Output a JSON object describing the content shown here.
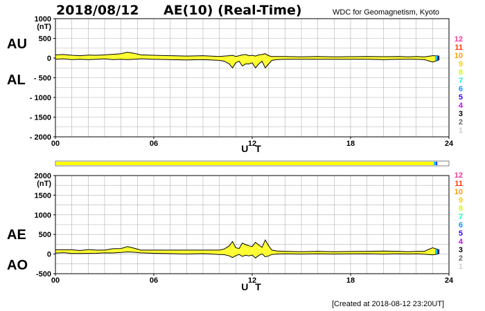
{
  "header": {
    "date": "2018/08/12",
    "title": "AE(10) (Real-Time)",
    "source": "WDC for Geomagnetism, Kyoto"
  },
  "footer": {
    "created": "[Created at 2018-08-12 23:20UT]"
  },
  "colors": {
    "fill": "#ffff33",
    "grid": "#b0b0b0",
    "axis": "#000000",
    "tail_cyan": "#00ccff",
    "tail_dark": "#222266"
  },
  "legend": {
    "items": [
      {
        "label": "12",
        "color": "#ff3399"
      },
      {
        "label": "11",
        "color": "#ff3300"
      },
      {
        "label": "10",
        "color": "#ff9900"
      },
      {
        "label": "9",
        "color": "#ffcc00"
      },
      {
        "label": "8",
        "color": "#ccff00"
      },
      {
        "label": "7",
        "color": "#00ffcc"
      },
      {
        "label": "6",
        "color": "#0099ff"
      },
      {
        "label": "5",
        "color": "#3300ff"
      },
      {
        "label": "4",
        "color": "#cc00ff"
      },
      {
        "label": "3",
        "color": "#000000"
      },
      {
        "label": "2",
        "color": "#666666"
      },
      {
        "label": "1",
        "color": "#cccccc"
      }
    ]
  },
  "station_bar": {
    "color": "#ffff00",
    "tail_colors": [
      "#00ccff",
      "#0033ff"
    ],
    "coverage_end_hour": 23.33
  },
  "chart_data": [
    {
      "type": "area",
      "name": "upper",
      "unit": "(nT)",
      "side_labels": [
        "AU",
        "AL"
      ],
      "xlabel": "U T",
      "xlim": [
        0,
        24
      ],
      "x_ticks": [
        "00",
        "06",
        "12",
        "18",
        "24"
      ],
      "ylim": [
        -2000,
        1000
      ],
      "y_ticks": [
        "1000",
        "500",
        "0",
        "- 500",
        "- 1000",
        "- 1500",
        "- 2000"
      ],
      "y_tick_values": [
        1000,
        500,
        0,
        -500,
        -1000,
        -1500,
        -2000
      ],
      "x": [
        0,
        0.5,
        1,
        1.5,
        2,
        2.5,
        3,
        3.5,
        4,
        4.4,
        4.8,
        5.2,
        6,
        7,
        8,
        9,
        10,
        10.3,
        10.6,
        10.8,
        11,
        11.2,
        11.4,
        11.6,
        11.8,
        12,
        12.2,
        12.4,
        12.6,
        12.8,
        13,
        13.2,
        13.5,
        14,
        15,
        16,
        17,
        18,
        19,
        20,
        21,
        21.5,
        22,
        22.5,
        23,
        23.33
      ],
      "series": [
        {
          "name": "AU",
          "values": [
            80,
            90,
            70,
            60,
            75,
            70,
            80,
            95,
            110,
            150,
            120,
            80,
            70,
            60,
            50,
            60,
            40,
            50,
            60,
            70,
            40,
            60,
            80,
            90,
            60,
            70,
            50,
            80,
            90,
            110,
            60,
            40,
            40,
            40,
            30,
            40,
            30,
            35,
            40,
            35,
            40,
            30,
            40,
            30,
            60,
            60
          ]
        },
        {
          "name": "AL",
          "values": [
            -30,
            -20,
            -40,
            -30,
            -40,
            -30,
            -20,
            -40,
            -30,
            -40,
            -30,
            -20,
            -30,
            -40,
            -50,
            -40,
            -60,
            -80,
            -150,
            -250,
            -120,
            -80,
            -200,
            -150,
            -150,
            -120,
            -250,
            -150,
            -80,
            -250,
            -150,
            -60,
            -40,
            -30,
            -30,
            -30,
            -30,
            -30,
            -30,
            -40,
            -30,
            -30,
            -30,
            -40,
            -100,
            -60
          ]
        }
      ]
    },
    {
      "type": "area",
      "name": "lower",
      "unit": "(nT)",
      "side_labels": [
        "AE",
        "AO"
      ],
      "xlabel": "U T",
      "xlim": [
        0,
        24
      ],
      "x_ticks": [
        "00",
        "06",
        "12",
        "18",
        "24"
      ],
      "ylim": [
        -500,
        2000
      ],
      "y_ticks": [
        "2000",
        "1500",
        "1000",
        "500",
        "0",
        "-500"
      ],
      "y_tick_values": [
        2000,
        1500,
        1000,
        500,
        0,
        -500
      ],
      "x": [
        0,
        0.5,
        1,
        1.5,
        2,
        2.5,
        3,
        3.5,
        4,
        4.4,
        4.8,
        5.2,
        6,
        7,
        8,
        9,
        10,
        10.3,
        10.6,
        10.8,
        11,
        11.2,
        11.4,
        11.6,
        11.8,
        12,
        12.2,
        12.4,
        12.6,
        12.8,
        13,
        13.2,
        13.5,
        14,
        15,
        16,
        17,
        18,
        19,
        20,
        21,
        21.5,
        22,
        22.5,
        23,
        23.33
      ],
      "series": [
        {
          "name": "AE",
          "values": [
            110,
            110,
            110,
            90,
            115,
            100,
            100,
            135,
            140,
            190,
            150,
            100,
            100,
            100,
            100,
            100,
            100,
            130,
            210,
            320,
            160,
            140,
            280,
            240,
            210,
            190,
            300,
            230,
            170,
            360,
            210,
            100,
            80,
            70,
            60,
            70,
            60,
            65,
            70,
            75,
            70,
            60,
            70,
            70,
            160,
            120
          ]
        },
        {
          "name": "AO",
          "values": [
            25,
            35,
            15,
            15,
            18,
            20,
            30,
            28,
            40,
            55,
            45,
            30,
            20,
            10,
            0,
            10,
            -10,
            -15,
            -45,
            -90,
            -40,
            -10,
            -60,
            -30,
            -45,
            -25,
            -100,
            -35,
            5,
            -70,
            -45,
            -10,
            0,
            5,
            0,
            5,
            0,
            3,
            5,
            -3,
            5,
            0,
            5,
            -5,
            -20,
            0
          ]
        }
      ]
    }
  ]
}
